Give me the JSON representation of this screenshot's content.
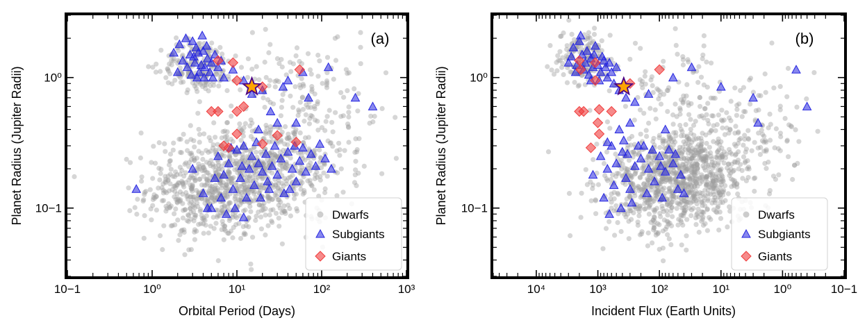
{
  "colors": {
    "dwarfs": "#9e9e9e",
    "subgiants": "#2626e0",
    "giants": "#f03c3c",
    "host_star_fill": "#ffa500",
    "host_star_edge": "#4b0082"
  },
  "legend": {
    "dwarfs": "Dwarfs",
    "subgiants": "Subgiants",
    "giants": "Giants"
  },
  "chart_data": [
    {
      "type": "scatter",
      "panel_label": "(a)",
      "xlabel": "Orbital Period (Days)",
      "ylabel": "Planet Radius (Jupiter Radii)",
      "xscale": "log",
      "yscale": "log",
      "xlim": [
        0.1,
        1000
      ],
      "ylim": [
        0.03,
        3
      ],
      "x_reversed": false,
      "legend_position": "lower-right",
      "xticks": [
        {
          "value": 0.1,
          "label": "10−1"
        },
        {
          "value": 1,
          "label": "10⁰"
        },
        {
          "value": 10,
          "label": "10¹"
        },
        {
          "value": 100,
          "label": "10²"
        },
        {
          "value": 1000,
          "label": "10³"
        }
      ],
      "yticks": [
        {
          "value": 0.1,
          "label": "10−1"
        },
        {
          "value": 1,
          "label": "10⁰"
        }
      ],
      "dwarfs_cloud": [
        {
          "x": 6,
          "y": 0.14,
          "sx": 0.42,
          "sy": 0.2,
          "n": 620
        },
        {
          "x": 25,
          "y": 0.2,
          "sx": 0.45,
          "sy": 0.2,
          "n": 380
        },
        {
          "x": 3.5,
          "y": 1.25,
          "sx": 0.22,
          "sy": 0.1,
          "n": 170
        },
        {
          "x": 30,
          "y": 0.9,
          "sx": 0.5,
          "sy": 0.18,
          "n": 110
        },
        {
          "x": 120,
          "y": 0.5,
          "sx": 0.35,
          "sy": 0.25,
          "n": 80
        }
      ],
      "subgiants": [
        {
          "x": 2.1,
          "y": 1.8
        },
        {
          "x": 2.5,
          "y": 2.0
        },
        {
          "x": 3.0,
          "y": 1.9
        },
        {
          "x": 3.3,
          "y": 1.7
        },
        {
          "x": 2.8,
          "y": 1.5
        },
        {
          "x": 3.5,
          "y": 1.55
        },
        {
          "x": 4.0,
          "y": 1.6
        },
        {
          "x": 4.5,
          "y": 1.4
        },
        {
          "x": 3.2,
          "y": 1.3
        },
        {
          "x": 3.8,
          "y": 1.25
        },
        {
          "x": 2.6,
          "y": 1.2
        },
        {
          "x": 4.2,
          "y": 1.2
        },
        {
          "x": 5.0,
          "y": 1.3
        },
        {
          "x": 3.6,
          "y": 1.1
        },
        {
          "x": 2.9,
          "y": 1.05
        },
        {
          "x": 5.5,
          "y": 1.5
        },
        {
          "x": 6.0,
          "y": 1.2
        },
        {
          "x": 4.8,
          "y": 1.1
        },
        {
          "x": 3.1,
          "y": 1.45
        },
        {
          "x": 2.3,
          "y": 1.35
        },
        {
          "x": 4.4,
          "y": 1.75
        },
        {
          "x": 3.9,
          "y": 2.1
        },
        {
          "x": 7.0,
          "y": 1.0
        },
        {
          "x": 9.0,
          "y": 1.15
        },
        {
          "x": 2.0,
          "y": 1.1
        },
        {
          "x": 1.8,
          "y": 1.55
        },
        {
          "x": 5.2,
          "y": 1.0
        },
        {
          "x": 6.5,
          "y": 1.35
        },
        {
          "x": 3.4,
          "y": 1.0
        },
        {
          "x": 4.1,
          "y": 1.0
        },
        {
          "x": 12,
          "y": 0.95
        },
        {
          "x": 15,
          "y": 0.75
        },
        {
          "x": 20,
          "y": 0.8
        },
        {
          "x": 25,
          "y": 0.55
        },
        {
          "x": 35,
          "y": 0.85
        },
        {
          "x": 50,
          "y": 0.45
        },
        {
          "x": 70,
          "y": 0.7
        },
        {
          "x": 120,
          "y": 1.2
        },
        {
          "x": 250,
          "y": 0.7
        },
        {
          "x": 400,
          "y": 0.6
        },
        {
          "x": 60,
          "y": 1.1
        },
        {
          "x": 40,
          "y": 0.95
        },
        {
          "x": 18,
          "y": 0.4
        },
        {
          "x": 30,
          "y": 0.45
        },
        {
          "x": 0.65,
          "y": 0.14
        },
        {
          "x": 3,
          "y": 0.2
        },
        {
          "x": 4,
          "y": 0.13
        },
        {
          "x": 5,
          "y": 0.1
        },
        {
          "x": 6,
          "y": 0.25
        },
        {
          "x": 7,
          "y": 0.18
        },
        {
          "x": 8,
          "y": 0.22
        },
        {
          "x": 9,
          "y": 0.14
        },
        {
          "x": 10,
          "y": 0.28
        },
        {
          "x": 11,
          "y": 0.17
        },
        {
          "x": 12,
          "y": 0.3
        },
        {
          "x": 13,
          "y": 0.12
        },
        {
          "x": 14,
          "y": 0.2
        },
        {
          "x": 15,
          "y": 0.25
        },
        {
          "x": 16,
          "y": 0.15
        },
        {
          "x": 17,
          "y": 0.32
        },
        {
          "x": 18,
          "y": 0.22
        },
        {
          "x": 20,
          "y": 0.19
        },
        {
          "x": 22,
          "y": 0.26
        },
        {
          "x": 24,
          "y": 0.14
        },
        {
          "x": 26,
          "y": 0.21
        },
        {
          "x": 28,
          "y": 0.3
        },
        {
          "x": 30,
          "y": 0.18
        },
        {
          "x": 33,
          "y": 0.24
        },
        {
          "x": 36,
          "y": 0.13
        },
        {
          "x": 40,
          "y": 0.27
        },
        {
          "x": 45,
          "y": 0.2
        },
        {
          "x": 50,
          "y": 0.16
        },
        {
          "x": 55,
          "y": 0.23
        },
        {
          "x": 60,
          "y": 0.29
        },
        {
          "x": 65,
          "y": 0.19
        },
        {
          "x": 75,
          "y": 0.26
        },
        {
          "x": 85,
          "y": 0.21
        },
        {
          "x": 95,
          "y": 0.31
        },
        {
          "x": 110,
          "y": 0.24
        },
        {
          "x": 130,
          "y": 0.2
        },
        {
          "x": 7.5,
          "y": 0.09
        },
        {
          "x": 9.5,
          "y": 0.1
        },
        {
          "x": 12,
          "y": 0.085
        },
        {
          "x": 6.5,
          "y": 0.12
        },
        {
          "x": 5.5,
          "y": 0.17
        },
        {
          "x": 4.5,
          "y": 0.1
        },
        {
          "x": 8.5,
          "y": 0.29
        },
        {
          "x": 19,
          "y": 0.12
        },
        {
          "x": 23,
          "y": 0.16
        },
        {
          "x": 42,
          "y": 0.14
        },
        {
          "x": 48,
          "y": 0.3
        },
        {
          "x": 11.5,
          "y": 0.21
        }
      ],
      "giants": [
        {
          "x": 6,
          "y": 1.35
        },
        {
          "x": 9,
          "y": 1.3
        },
        {
          "x": 10,
          "y": 0.95
        },
        {
          "x": 20,
          "y": 0.85
        },
        {
          "x": 55,
          "y": 1.15
        },
        {
          "x": 5,
          "y": 0.55
        },
        {
          "x": 6,
          "y": 0.55
        },
        {
          "x": 10,
          "y": 0.55
        },
        {
          "x": 12,
          "y": 0.6
        },
        {
          "x": 10,
          "y": 0.37
        },
        {
          "x": 7,
          "y": 0.3
        },
        {
          "x": 8,
          "y": 0.29
        },
        {
          "x": 20,
          "y": 0.31
        },
        {
          "x": 30,
          "y": 0.36
        },
        {
          "x": 50,
          "y": 0.32
        }
      ],
      "host_star": {
        "x": 15,
        "y": 0.85
      }
    },
    {
      "type": "scatter",
      "panel_label": "(b)",
      "xlabel": "Incident Flux (Earth Units)",
      "ylabel": "Planet Radius (Jupiter Radii)",
      "xscale": "log",
      "yscale": "log",
      "xlim": [
        50000,
        0.1
      ],
      "ylim": [
        0.03,
        3
      ],
      "x_reversed": true,
      "legend_position": "lower-right",
      "xticks": [
        {
          "value": 10000,
          "label": "10⁴"
        },
        {
          "value": 1000,
          "label": "10³"
        },
        {
          "value": 100,
          "label": "10²"
        },
        {
          "value": 10,
          "label": "10¹"
        },
        {
          "value": 1,
          "label": "10⁰"
        },
        {
          "value": 0.1,
          "label": "10−1"
        }
      ],
      "yticks": [
        {
          "value": 0.1,
          "label": "10−1"
        },
        {
          "value": 1,
          "label": "10⁰"
        }
      ],
      "dwarfs_cloud": [
        {
          "x": 100,
          "y": 0.14,
          "sx": 0.55,
          "sy": 0.2,
          "n": 520
        },
        {
          "x": 25,
          "y": 0.2,
          "sx": 0.5,
          "sy": 0.18,
          "n": 520
        },
        {
          "x": 1800,
          "y": 1.4,
          "sx": 0.22,
          "sy": 0.1,
          "n": 170
        },
        {
          "x": 40,
          "y": 0.75,
          "sx": 0.55,
          "sy": 0.18,
          "n": 110
        },
        {
          "x": 2,
          "y": 0.4,
          "sx": 0.4,
          "sy": 0.25,
          "n": 80
        }
      ],
      "subgiants": [
        {
          "x": 2500,
          "y": 1.7
        },
        {
          "x": 2000,
          "y": 1.9
        },
        {
          "x": 1800,
          "y": 1.5
        },
        {
          "x": 1500,
          "y": 1.6
        },
        {
          "x": 1300,
          "y": 1.4
        },
        {
          "x": 1600,
          "y": 1.3
        },
        {
          "x": 1200,
          "y": 1.2
        },
        {
          "x": 1000,
          "y": 1.25
        },
        {
          "x": 900,
          "y": 1.1
        },
        {
          "x": 1400,
          "y": 1.05
        },
        {
          "x": 800,
          "y": 1.35
        },
        {
          "x": 2200,
          "y": 1.25
        },
        {
          "x": 1700,
          "y": 1.15
        },
        {
          "x": 700,
          "y": 1.0
        },
        {
          "x": 600,
          "y": 1.1
        },
        {
          "x": 1100,
          "y": 1.75
        },
        {
          "x": 2700,
          "y": 1.45
        },
        {
          "x": 500,
          "y": 1.2
        },
        {
          "x": 950,
          "y": 0.95
        },
        {
          "x": 750,
          "y": 1.2
        },
        {
          "x": 1900,
          "y": 2.1
        },
        {
          "x": 3000,
          "y": 1.3
        },
        {
          "x": 1300,
          "y": 0.95
        },
        {
          "x": 550,
          "y": 0.9
        },
        {
          "x": 1150,
          "y": 1.5
        },
        {
          "x": 650,
          "y": 1.3
        },
        {
          "x": 2300,
          "y": 1.1
        },
        {
          "x": 850,
          "y": 1.45
        },
        {
          "x": 450,
          "y": 0.8
        },
        {
          "x": 350,
          "y": 0.7
        },
        {
          "x": 250,
          "y": 0.65
        },
        {
          "x": 150,
          "y": 0.75
        },
        {
          "x": 60,
          "y": 1.0
        },
        {
          "x": 30,
          "y": 1.2
        },
        {
          "x": 10,
          "y": 0.85
        },
        {
          "x": 3,
          "y": 0.7
        },
        {
          "x": 0.6,
          "y": 1.15
        },
        {
          "x": 0.4,
          "y": 0.6
        },
        {
          "x": 2.5,
          "y": 0.45
        },
        {
          "x": 300,
          "y": 0.45
        },
        {
          "x": 450,
          "y": 0.4
        },
        {
          "x": 80,
          "y": 0.4
        },
        {
          "x": 900,
          "y": 0.25
        },
        {
          "x": 700,
          "y": 0.2
        },
        {
          "x": 600,
          "y": 0.3
        },
        {
          "x": 500,
          "y": 0.22
        },
        {
          "x": 400,
          "y": 0.27
        },
        {
          "x": 350,
          "y": 0.17
        },
        {
          "x": 300,
          "y": 0.14
        },
        {
          "x": 250,
          "y": 0.21
        },
        {
          "x": 200,
          "y": 0.24
        },
        {
          "x": 180,
          "y": 0.3
        },
        {
          "x": 150,
          "y": 0.2
        },
        {
          "x": 120,
          "y": 0.16
        },
        {
          "x": 100,
          "y": 0.25
        },
        {
          "x": 90,
          "y": 0.12
        },
        {
          "x": 80,
          "y": 0.19
        },
        {
          "x": 70,
          "y": 0.28
        },
        {
          "x": 60,
          "y": 0.22
        },
        {
          "x": 50,
          "y": 0.14
        },
        {
          "x": 45,
          "y": 0.18
        },
        {
          "x": 40,
          "y": 0.13
        },
        {
          "x": 800,
          "y": 0.12
        },
        {
          "x": 550,
          "y": 0.15
        },
        {
          "x": 420,
          "y": 0.1
        },
        {
          "x": 280,
          "y": 0.11
        },
        {
          "x": 220,
          "y": 0.3
        },
        {
          "x": 160,
          "y": 0.13
        },
        {
          "x": 130,
          "y": 0.28
        },
        {
          "x": 1200,
          "y": 0.18
        },
        {
          "x": 700,
          "y": 0.32
        },
        {
          "x": 380,
          "y": 0.33
        },
        {
          "x": 95,
          "y": 0.21
        },
        {
          "x": 55,
          "y": 0.26
        },
        {
          "x": 650,
          "y": 0.09
        },
        {
          "x": 330,
          "y": 0.26
        }
      ],
      "giants": [
        {
          "x": 2000,
          "y": 1.35
        },
        {
          "x": 1100,
          "y": 1.3
        },
        {
          "x": 1900,
          "y": 1.15
        },
        {
          "x": 1100,
          "y": 0.95
        },
        {
          "x": 300,
          "y": 0.9
        },
        {
          "x": 100,
          "y": 1.15
        },
        {
          "x": 2000,
          "y": 0.55
        },
        {
          "x": 1700,
          "y": 0.55
        },
        {
          "x": 950,
          "y": 0.57
        },
        {
          "x": 600,
          "y": 0.55
        },
        {
          "x": 1000,
          "y": 0.45
        },
        {
          "x": 950,
          "y": 0.37
        },
        {
          "x": 1300,
          "y": 0.29
        }
      ],
      "host_star": {
        "x": 380,
        "y": 0.85
      }
    }
  ]
}
